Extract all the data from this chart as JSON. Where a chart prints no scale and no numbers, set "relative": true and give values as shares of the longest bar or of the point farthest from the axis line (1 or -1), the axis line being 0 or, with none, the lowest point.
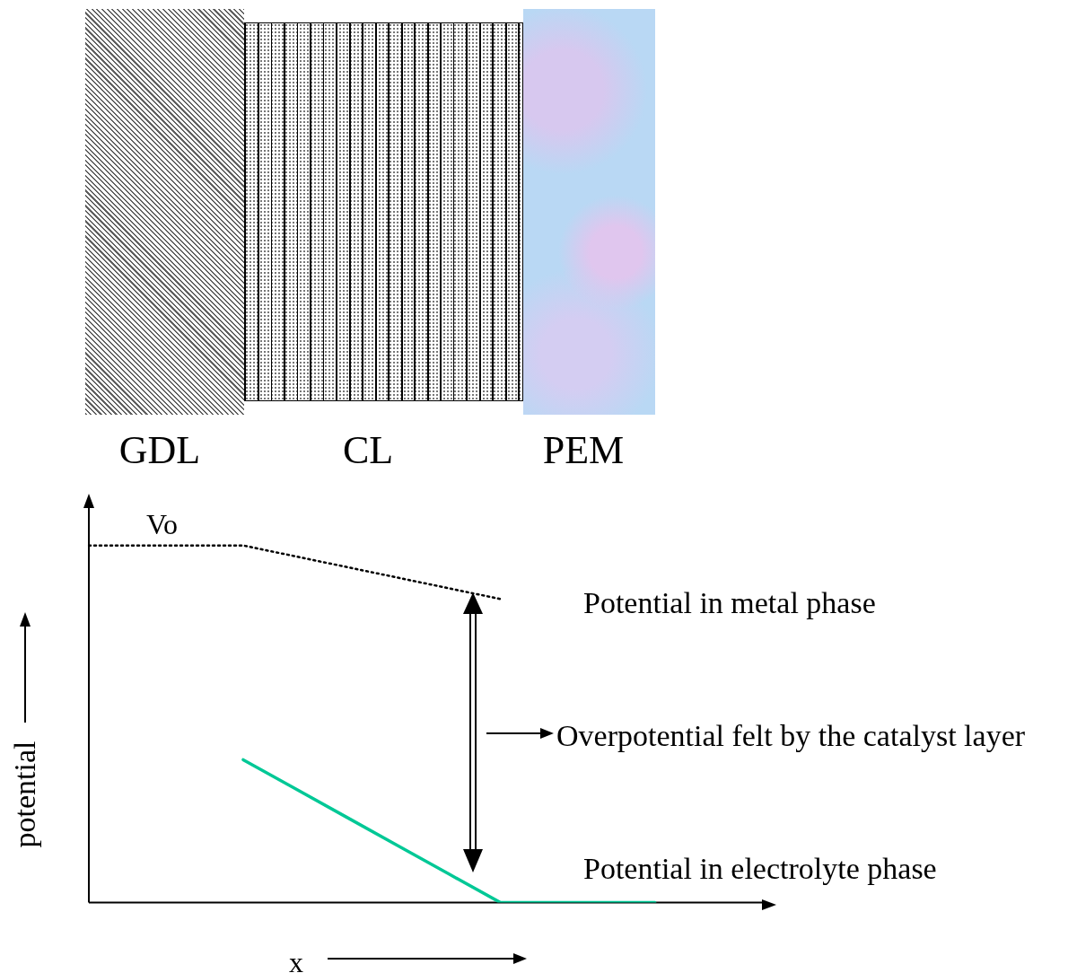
{
  "chart_data": {
    "type": "line",
    "relative": true,
    "xlabel": "x",
    "ylabel": "potential",
    "legend": false,
    "marker": "none",
    "categories": [
      null,
      null,
      null,
      null,
      null,
      null,
      null,
      null,
      null,
      null,
      null,
      null,
      null
    ],
    "series": [
      {
        "color": "#000000",
        "line_style": "dotted",
        "values": [
          1,
          1,
          1,
          1,
          0.97,
          0.94,
          0.91,
          0.88,
          0.85,
          null,
          null,
          null,
          null
        ]
      },
      {
        "color": "#00c896",
        "line_style": "solid",
        "values": [
          null,
          null,
          null,
          0.4,
          0.32,
          0.24,
          0.16,
          0.08,
          0,
          0,
          0,
          0,
          null
        ]
      }
    ],
    "annotations": [
      "GDL",
      "CL",
      "PEM",
      "Vo",
      "Potential in metal phase",
      "Overpotential felt by the catalyst layer",
      "Potential in electrolyte phase"
    ]
  }
}
